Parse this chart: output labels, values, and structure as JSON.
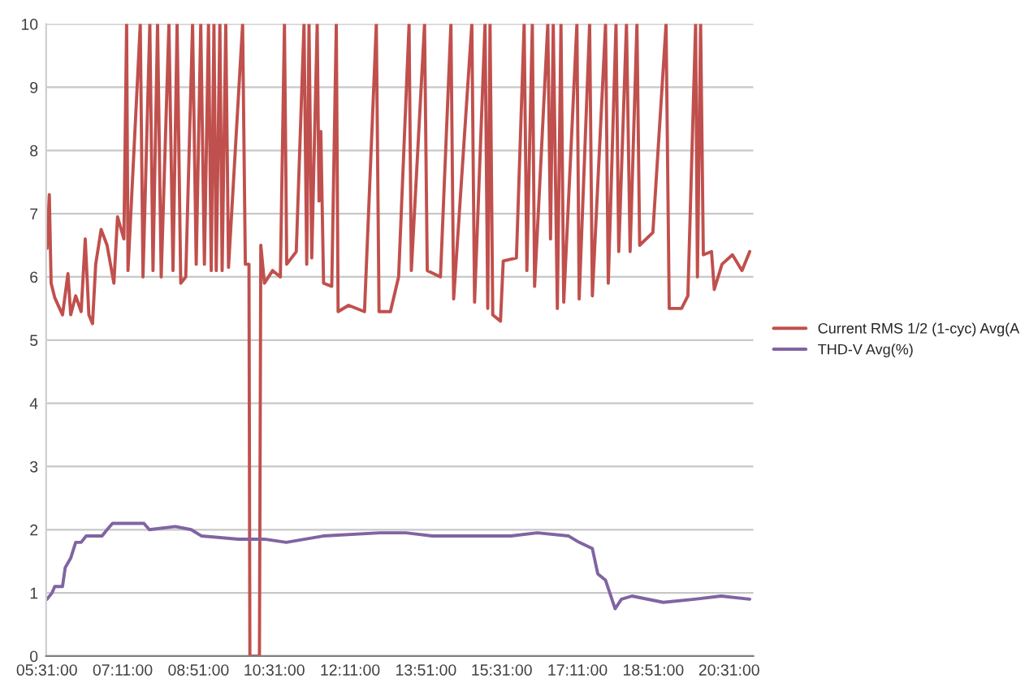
{
  "chart_data": {
    "type": "line",
    "xlim": [
      5.5,
      21.05
    ],
    "ylim": [
      0,
      10
    ],
    "yticks": [
      0,
      1,
      2,
      3,
      4,
      5,
      6,
      7,
      8,
      9,
      10
    ],
    "xticks": [
      {
        "value": 5.5167,
        "label": "05:31:00"
      },
      {
        "value": 7.1833,
        "label": "07:11:00"
      },
      {
        "value": 8.85,
        "label": "08:51:00"
      },
      {
        "value": 10.5167,
        "label": "10:31:00"
      },
      {
        "value": 12.1833,
        "label": "12:11:00"
      },
      {
        "value": 13.85,
        "label": "13:51:00"
      },
      {
        "value": 15.5167,
        "label": "15:31:00"
      },
      {
        "value": 17.1833,
        "label": "17:11:00"
      },
      {
        "value": 18.85,
        "label": "18:51:00"
      },
      {
        "value": 20.5167,
        "label": "20:31:00"
      }
    ],
    "grid": "y",
    "legend": "right",
    "line_style": "solid",
    "series": [
      {
        "name": "Current RMS 1/2 (1-cyc) Avg(A",
        "color": "#c0504d",
        "x": [
          5.52,
          5.57,
          5.61,
          5.69,
          5.86,
          5.98,
          6.04,
          6.15,
          6.27,
          6.36,
          6.44,
          6.52,
          6.59,
          6.71,
          6.84,
          6.99,
          7.07,
          7.21,
          7.27,
          7.3,
          7.57,
          7.63,
          7.78,
          7.85,
          7.95,
          8.03,
          8.2,
          8.29,
          8.38,
          8.46,
          8.57,
          8.72,
          8.8,
          8.9,
          8.98,
          9.07,
          9.13,
          9.19,
          9.24,
          9.32,
          9.37,
          9.45,
          9.51,
          9.82,
          9.88,
          9.96,
          9.98,
          10.19,
          10.22,
          10.3,
          10.48,
          10.65,
          10.74,
          10.79,
          11.0,
          11.17,
          11.23,
          11.28,
          11.34,
          11.46,
          11.5,
          11.54,
          11.6,
          11.78,
          11.88,
          11.92,
          12.15,
          12.5,
          12.76,
          12.82,
          13.07,
          13.25,
          13.48,
          13.53,
          13.82,
          13.88,
          14.17,
          14.4,
          14.46,
          14.86,
          14.92,
          15.15,
          15.21,
          15.26,
          15.32,
          15.49,
          15.55,
          15.84,
          16.01,
          16.07,
          16.19,
          16.24,
          16.53,
          16.59,
          16.65,
          16.74,
          16.82,
          16.88,
          17.17,
          17.22,
          17.45,
          17.51,
          17.8,
          17.86,
          18.03,
          18.09,
          18.26,
          18.34,
          18.49,
          18.55,
          18.84,
          19.13,
          19.2,
          19.47,
          19.61,
          19.78,
          19.82,
          19.89,
          19.95,
          20.13,
          20.19,
          20.36,
          20.59,
          20.8,
          20.97
        ],
        "values": [
          6.45,
          7.3,
          5.9,
          5.67,
          5.4,
          6.05,
          5.4,
          5.7,
          5.45,
          6.6,
          5.4,
          5.26,
          6.2,
          6.75,
          6.5,
          5.9,
          6.95,
          6.6,
          10,
          6.1,
          10,
          6.0,
          10,
          6.1,
          10,
          6.0,
          10,
          6.1,
          10,
          5.9,
          6.0,
          10,
          6.2,
          10,
          6.2,
          10,
          6.1,
          10,
          6.1,
          10,
          6.1,
          10,
          6.15,
          10,
          6.2,
          6.2,
          0,
          0,
          6.5,
          5.9,
          6.1,
          6.0,
          10,
          6.2,
          6.4,
          10,
          6.2,
          10,
          6.3,
          10,
          7.2,
          8.3,
          5.9,
          5.85,
          10,
          5.45,
          5.55,
          5.45,
          10,
          5.45,
          5.45,
          6.0,
          10,
          6.1,
          10,
          6.1,
          6.0,
          10,
          5.65,
          10,
          5.6,
          10,
          5.5,
          10,
          5.4,
          5.3,
          6.25,
          6.3,
          10,
          6.1,
          10,
          5.85,
          10,
          6.6,
          10,
          5.5,
          10,
          5.6,
          10,
          5.65,
          10,
          5.7,
          10,
          5.9,
          10,
          6.4,
          10,
          6.4,
          10,
          6.5,
          6.7,
          10,
          5.5,
          5.5,
          5.7,
          10,
          6.0,
          10,
          6.35,
          6.4,
          5.8,
          6.2,
          6.35,
          6.1,
          6.4
        ]
      },
      {
        "name": "THD-V Avg(%)",
        "color": "#8064a2",
        "x": [
          5.52,
          5.63,
          5.69,
          5.86,
          5.92,
          6.04,
          6.15,
          6.27,
          6.38,
          6.73,
          6.84,
          6.96,
          7.65,
          7.77,
          8.34,
          8.69,
          8.92,
          9.73,
          10.3,
          10.78,
          11.59,
          12.84,
          13.41,
          13.99,
          15.72,
          16.3,
          16.99,
          17.22,
          17.51,
          17.63,
          17.8,
          18.01,
          18.15,
          18.38,
          19.07,
          19.76,
          20.34,
          20.97
        ],
        "values": [
          0.9,
          1.0,
          1.1,
          1.1,
          1.4,
          1.55,
          1.8,
          1.8,
          1.9,
          1.9,
          2.0,
          2.1,
          2.1,
          2.0,
          2.05,
          2.0,
          1.9,
          1.85,
          1.85,
          1.8,
          1.9,
          1.95,
          1.95,
          1.9,
          1.9,
          1.95,
          1.9,
          1.8,
          1.7,
          1.3,
          1.2,
          0.75,
          0.9,
          0.95,
          0.85,
          0.9,
          0.95,
          0.9
        ]
      }
    ]
  }
}
